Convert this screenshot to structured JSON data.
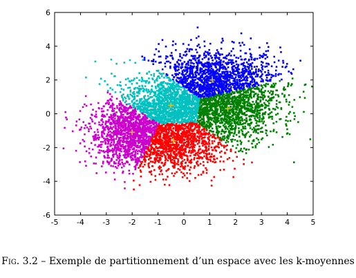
{
  "chart_data": {
    "type": "scatter",
    "title": "",
    "xlabel": "",
    "ylabel": "",
    "xlim": [
      -5,
      5
    ],
    "ylim": [
      -6,
      6
    ],
    "xticks": [
      "-5",
      "-4",
      "-3",
      "-2",
      "-1",
      "0",
      "1",
      "2",
      "3",
      "4",
      "5"
    ],
    "yticks": [
      "-6",
      "-4",
      "-2",
      "0",
      "2",
      "4",
      "6"
    ],
    "grid": false,
    "legend": "none",
    "centroids": [
      {
        "cluster": "blue",
        "x": 1.1,
        "y": 2.0
      },
      {
        "cluster": "cyan",
        "x": -0.5,
        "y": 0.5
      },
      {
        "cluster": "green",
        "x": 1.7,
        "y": 0.3
      },
      {
        "cluster": "magenta",
        "x": -2.0,
        "y": -1.1
      },
      {
        "cluster": "red",
        "x": -0.4,
        "y": -1.6
      }
    ],
    "clusters": [
      {
        "color": "#0000ff",
        "center": [
          1.1,
          2.0
        ],
        "spread": [
          1.3,
          0.95
        ],
        "count": 1500
      },
      {
        "color": "#00c0c0",
        "center": [
          -0.5,
          0.5
        ],
        "spread": [
          0.8,
          0.75
        ],
        "count": 1100
      },
      {
        "color": "#008000",
        "center": [
          1.7,
          0.3
        ],
        "spread": [
          1.0,
          1.05
        ],
        "count": 1400
      },
      {
        "color": "#cc00cc",
        "center": [
          -2.0,
          -1.1
        ],
        "spread": [
          0.85,
          1.0
        ],
        "count": 1400
      },
      {
        "color": "#ff0000",
        "center": [
          -0.4,
          -1.6
        ],
        "spread": [
          1.0,
          0.95
        ],
        "count": 1300
      }
    ],
    "centroid_marker": "+",
    "centroid_color": "#e0c020"
  },
  "caption": {
    "label": "Fig. 3.2",
    "text": " – Exemple de partitionnement d’un espace avec les k-moyennes"
  }
}
